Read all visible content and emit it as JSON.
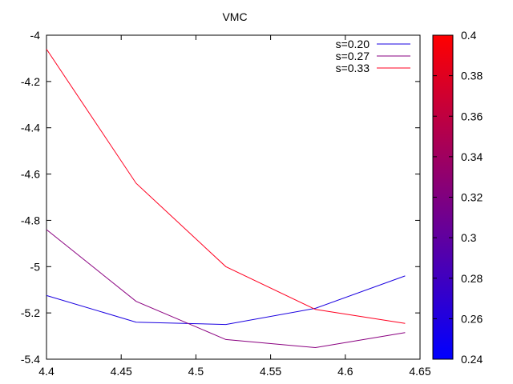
{
  "chart_data": {
    "type": "line",
    "title": "VMC",
    "xlabel": "",
    "ylabel": "",
    "xlim": [
      4.4,
      4.65
    ],
    "ylim": [
      -5.4,
      -4.0
    ],
    "x_ticks": [
      "4.4",
      "4.45",
      "4.5",
      "4.55",
      "4.6",
      "4.65"
    ],
    "y_ticks": [
      "-4",
      "-4.2",
      "-4.4",
      "-4.6",
      "-4.8",
      "-5",
      "-5.2",
      "-5.4"
    ],
    "grid": false,
    "legend_position": "top-right",
    "series": [
      {
        "name": "s=0.20",
        "color": "#1a00e0",
        "x": [
          4.4,
          4.46,
          4.52,
          4.58,
          4.64
        ],
        "y": [
          -5.125,
          -5.24,
          -5.25,
          -5.18,
          -5.04
        ]
      },
      {
        "name": "s=0.27",
        "color": "#8a0080",
        "x": [
          4.4,
          4.46,
          4.52,
          4.58,
          4.64
        ],
        "y": [
          -4.84,
          -5.15,
          -5.315,
          -5.35,
          -5.285
        ]
      },
      {
        "name": "s=0.33",
        "color": "#ff0020",
        "x": [
          4.4,
          4.46,
          4.52,
          4.58,
          4.64
        ],
        "y": [
          -4.06,
          -4.64,
          -5.0,
          -5.185,
          -5.245
        ]
      }
    ],
    "colorbar": {
      "range": [
        0.24,
        0.4
      ],
      "ticks": [
        "0.24",
        "0.26",
        "0.28",
        "0.3",
        "0.32",
        "0.34",
        "0.36",
        "0.38",
        "0.4"
      ],
      "low_color": "#0000ff",
      "high_color": "#ff0000"
    }
  }
}
